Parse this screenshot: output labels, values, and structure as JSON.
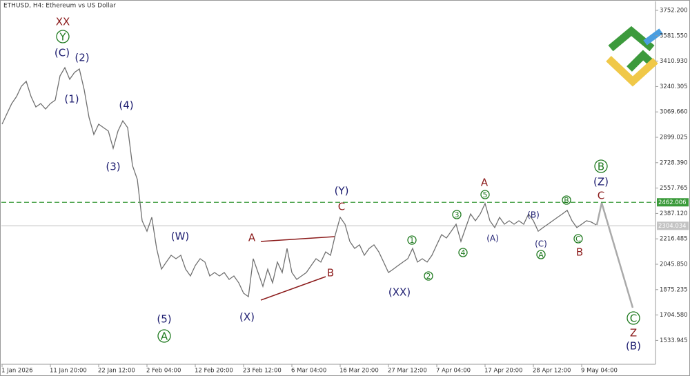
{
  "chart_data": {
    "type": "line",
    "title": "ETHUSD, H4:  Ethereum vs US Dollar",
    "color": "#707070",
    "categories": [
      "1 Jan 2026",
      null,
      null,
      null,
      null,
      null,
      null,
      null,
      null,
      null,
      "11 Jan 20:00",
      null,
      null,
      null,
      null,
      null,
      null,
      null,
      null,
      null,
      "22 Jan 12:00",
      null,
      null,
      null,
      null,
      null,
      null,
      null,
      null,
      null,
      "2 Feb 04:00",
      null,
      null,
      null,
      null,
      null,
      null,
      null,
      null,
      null,
      "12 Feb 20:00",
      null,
      null,
      null,
      null,
      null,
      null,
      null,
      null,
      null,
      "23 Feb 12:00",
      null,
      null,
      null,
      null,
      null,
      null,
      null,
      null,
      null,
      "6 Mar 04:00",
      null,
      null,
      null,
      null,
      null,
      null,
      null,
      null,
      null,
      "16 Mar 20:00",
      null,
      null,
      null,
      null,
      null,
      null,
      null,
      null,
      null,
      "27 Mar 12:00",
      null,
      null,
      null,
      null,
      null,
      null,
      null,
      null,
      null,
      "7 Apr 04:00",
      null,
      null,
      null,
      null,
      null,
      null,
      null,
      null,
      null,
      "17 Apr 20:00",
      null,
      null,
      null,
      null,
      null,
      null,
      null,
      null,
      null,
      "28 Apr 12:00",
      null,
      null,
      null,
      null,
      null,
      null,
      null,
      null,
      null,
      "9 May 04:00",
      null,
      null,
      null,
      null,
      null,
      null,
      null,
      null,
      null,
      null,
      null,
      null,
      null,
      null,
      null
    ],
    "values": [
      2987,
      3057,
      3126,
      3173,
      3242,
      3275,
      3173,
      3103,
      3126,
      3089,
      3126,
      3149,
      3312,
      3367,
      3289,
      3335,
      3358,
      3219,
      3033,
      2918,
      2987,
      2964,
      2941,
      2825,
      2941,
      3010,
      2964,
      2709,
      2616,
      2338,
      2268,
      2361,
      2152,
      2013,
      2060,
      2106,
      2083,
      2106,
      2013,
      1967,
      2037,
      2083,
      2060,
      1967,
      1990,
      1967,
      1990,
      1944,
      1967,
      1921,
      1851,
      1828,
      2083,
      1990,
      1897,
      2013,
      1921,
      2060,
      1990,
      2152,
      1990,
      1944,
      1967,
      1990,
      2037,
      2083,
      2060,
      2129,
      2106,
      2245,
      2361,
      2315,
      2199,
      2152,
      2176,
      2106,
      2152,
      2176,
      2129,
      2060,
      1990,
      2013,
      2037,
      2060,
      2083,
      2152,
      2060,
      2083,
      2060,
      2106,
      2176,
      2245,
      2222,
      2268,
      2315,
      2199,
      2292,
      2384,
      2338,
      2384,
      2454,
      2338,
      2292,
      2361,
      2315,
      2338,
      2315,
      2338,
      2315,
      2384,
      2338,
      2268,
      2292,
      2315,
      2338,
      2361,
      2384,
      2408,
      2338,
      2292,
      2315,
      2338,
      2329,
      2310,
      null,
      null,
      null,
      null,
      null,
      null,
      null,
      null,
      null,
      null,
      null,
      null
    ],
    "ylim": [
      1373.5,
      3812.5
    ],
    "yticks": [
      {
        "value": 3752.2,
        "label": "3752.200"
      },
      {
        "value": 3581.55,
        "label": "3581.550"
      },
      {
        "value": 3410.93,
        "label": "3410.930"
      },
      3240.305,
      {
        "value": 3069.66,
        "label": "3069.660"
      },
      2899.025,
      {
        "value": 2728.39,
        "label": "2728.390"
      },
      2557.765,
      {
        "value": 2387.12,
        "label": "2387.120"
      },
      2216.485,
      {
        "value": 2045.85,
        "label": "2045.850"
      },
      1875.235,
      {
        "value": 1704.58,
        "label": "1704.580"
      },
      1533.945
    ],
    "levels": [
      {
        "value": 2462.006,
        "color": "#3a9a3a"
      },
      {
        "value": 2304.034,
        "color": "#c4c4c4"
      }
    ],
    "annotations": [
      "XX",
      "Y",
      "(C)",
      "(2)",
      "(1)",
      "(4)",
      "(3)",
      "(W)",
      "(5)",
      "A",
      "(X)",
      "A",
      "B",
      "(Y)",
      "C",
      "(XX)",
      "1",
      "2",
      "3",
      "4",
      "A",
      "5",
      "(A)",
      "(B)",
      "(C)",
      "A",
      "B",
      "C",
      "B",
      "B",
      "(Z)",
      "C",
      "C",
      "Z",
      "(B)"
    ]
  }
}
